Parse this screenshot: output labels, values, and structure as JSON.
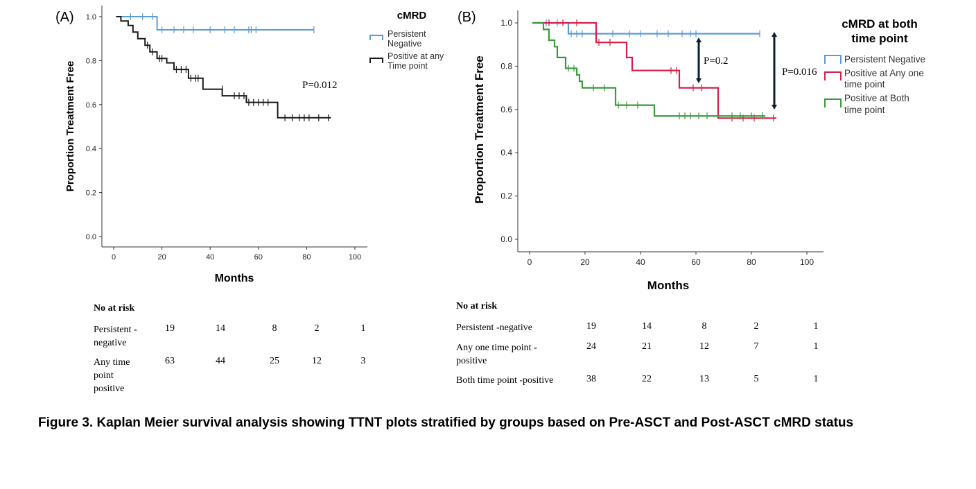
{
  "chart_data": [
    {
      "panel_label": "(A)",
      "type": "line",
      "step": true,
      "ylabel": "Proportion Treatment Free",
      "xlabel": "Months",
      "xlim": [
        0,
        100
      ],
      "ylim": [
        0,
        1
      ],
      "x_ticks": [
        "0",
        "20",
        "40",
        "60",
        "80",
        "100"
      ],
      "y_ticks": [
        "0.0",
        "0.2",
        "0.4",
        "0.6",
        "0.8",
        "1.0"
      ],
      "legend_title": "cMRD",
      "legend": [
        "Persistent Negative",
        "Positive at any Time point"
      ],
      "annotation": "P=0.012",
      "series": [
        {
          "name": "Persistent Negative",
          "color": "#5b9bd5",
          "points": [
            [
              1,
              1.0
            ],
            [
              18,
              1.0
            ],
            [
              18,
              0.94
            ],
            [
              83,
              0.94
            ]
          ],
          "censored": [
            [
              7,
              1.0
            ],
            [
              12,
              1.0
            ],
            [
              16,
              1.0
            ],
            [
              20,
              0.94
            ],
            [
              25,
              0.94
            ],
            [
              29,
              0.94
            ],
            [
              33,
              0.94
            ],
            [
              40,
              0.94
            ],
            [
              46,
              0.94
            ],
            [
              50,
              0.94
            ],
            [
              56,
              0.94
            ],
            [
              57,
              0.94
            ],
            [
              59,
              0.94
            ],
            [
              83,
              0.94
            ]
          ]
        },
        {
          "name": "Positive at any Time point",
          "color": "#1a1a1a",
          "points": [
            [
              1,
              1.0
            ],
            [
              3,
              1.0
            ],
            [
              3,
              0.98
            ],
            [
              6,
              0.98
            ],
            [
              6,
              0.96
            ],
            [
              8,
              0.96
            ],
            [
              8,
              0.93
            ],
            [
              10,
              0.93
            ],
            [
              10,
              0.9
            ],
            [
              13,
              0.9
            ],
            [
              13,
              0.87
            ],
            [
              15,
              0.87
            ],
            [
              15,
              0.84
            ],
            [
              18,
              0.84
            ],
            [
              18,
              0.81
            ],
            [
              22,
              0.81
            ],
            [
              22,
              0.79
            ],
            [
              25,
              0.79
            ],
            [
              25,
              0.76
            ],
            [
              31,
              0.76
            ],
            [
              31,
              0.72
            ],
            [
              37,
              0.72
            ],
            [
              37,
              0.67
            ],
            [
              45,
              0.67
            ],
            [
              45,
              0.64
            ],
            [
              55,
              0.64
            ],
            [
              55,
              0.61
            ],
            [
              68,
              0.61
            ],
            [
              68,
              0.54
            ],
            [
              90,
              0.54
            ]
          ],
          "censored": [
            [
              14,
              0.87
            ],
            [
              16,
              0.84
            ],
            [
              19,
              0.81
            ],
            [
              20,
              0.81
            ],
            [
              26,
              0.76
            ],
            [
              28,
              0.76
            ],
            [
              30,
              0.76
            ],
            [
              32,
              0.72
            ],
            [
              34,
              0.72
            ],
            [
              35,
              0.72
            ],
            [
              45,
              0.67
            ],
            [
              50,
              0.64
            ],
            [
              52,
              0.64
            ],
            [
              54,
              0.64
            ],
            [
              56,
              0.61
            ],
            [
              58,
              0.61
            ],
            [
              60,
              0.61
            ],
            [
              62,
              0.61
            ],
            [
              64,
              0.61
            ],
            [
              71,
              0.54
            ],
            [
              74,
              0.54
            ],
            [
              77,
              0.54
            ],
            [
              79,
              0.54
            ],
            [
              81,
              0.54
            ],
            [
              85,
              0.54
            ],
            [
              89,
              0.54
            ]
          ]
        }
      ]
    },
    {
      "panel_label": "(B)",
      "type": "line",
      "step": true,
      "ylabel": "Proportion Treatment Free",
      "xlabel": "Months",
      "xlim": [
        0,
        100
      ],
      "ylim": [
        0,
        1
      ],
      "x_ticks": [
        "0",
        "20",
        "40",
        "60",
        "80",
        "100"
      ],
      "y_ticks": [
        "0.0",
        "0.2",
        "0.4",
        "0.6",
        "0.8",
        "1.0"
      ],
      "legend_title": "cMRD at both time point",
      "legend": [
        "Persistent Negative",
        "Positive at Any one time point",
        "Positive at Both time point"
      ],
      "annotations": [
        "P=0.2",
        "P=0.016"
      ],
      "series": [
        {
          "name": "Persistent Negative",
          "color": "#5b9bd5",
          "points": [
            [
              1,
              1.0
            ],
            [
              14,
              1.0
            ],
            [
              14,
              0.95
            ],
            [
              83,
              0.95
            ]
          ],
          "censored": [
            [
              6,
              1.0
            ],
            [
              10,
              1.0
            ],
            [
              15,
              0.95
            ],
            [
              17,
              0.95
            ],
            [
              19,
              0.95
            ],
            [
              24,
              0.95
            ],
            [
              30,
              0.95
            ],
            [
              36,
              0.95
            ],
            [
              40,
              0.95
            ],
            [
              46,
              0.95
            ],
            [
              50,
              0.95
            ],
            [
              55,
              0.95
            ],
            [
              58,
              0.95
            ],
            [
              60,
              0.95
            ],
            [
              83,
              0.95
            ]
          ]
        },
        {
          "name": "Positive at Any one time point",
          "color": "#d6204a",
          "points": [
            [
              1,
              1.0
            ],
            [
              24,
              1.0
            ],
            [
              24,
              0.91
            ],
            [
              35,
              0.91
            ],
            [
              35,
              0.84
            ],
            [
              37,
              0.84
            ],
            [
              37,
              0.78
            ],
            [
              54,
              0.78
            ],
            [
              54,
              0.7
            ],
            [
              68,
              0.7
            ],
            [
              68,
              0.56
            ],
            [
              89,
              0.56
            ]
          ],
          "censored": [
            [
              7,
              1.0
            ],
            [
              12,
              1.0
            ],
            [
              17,
              1.0
            ],
            [
              25,
              0.91
            ],
            [
              29,
              0.91
            ],
            [
              51,
              0.78
            ],
            [
              53,
              0.78
            ],
            [
              59,
              0.7
            ],
            [
              62,
              0.7
            ],
            [
              73,
              0.56
            ],
            [
              77,
              0.56
            ],
            [
              81,
              0.56
            ],
            [
              88,
              0.56
            ]
          ]
        },
        {
          "name": "Positive at Both time point",
          "color": "#3a9a3a",
          "points": [
            [
              1,
              1.0
            ],
            [
              5,
              1.0
            ],
            [
              5,
              0.97
            ],
            [
              7,
              0.97
            ],
            [
              7,
              0.92
            ],
            [
              9,
              0.92
            ],
            [
              9,
              0.89
            ],
            [
              10,
              0.89
            ],
            [
              10,
              0.84
            ],
            [
              13,
              0.84
            ],
            [
              13,
              0.79
            ],
            [
              17,
              0.79
            ],
            [
              17,
              0.76
            ],
            [
              18,
              0.76
            ],
            [
              18,
              0.73
            ],
            [
              19,
              0.73
            ],
            [
              19,
              0.7
            ],
            [
              31,
              0.7
            ],
            [
              31,
              0.62
            ],
            [
              45,
              0.62
            ],
            [
              45,
              0.57
            ],
            [
              85,
              0.57
            ]
          ],
          "censored": [
            [
              14,
              0.79
            ],
            [
              16,
              0.79
            ],
            [
              23,
              0.7
            ],
            [
              27,
              0.7
            ],
            [
              32,
              0.62
            ],
            [
              35,
              0.62
            ],
            [
              39,
              0.62
            ],
            [
              54,
              0.57
            ],
            [
              56,
              0.57
            ],
            [
              58,
              0.57
            ],
            [
              61,
              0.57
            ],
            [
              64,
              0.57
            ],
            [
              73,
              0.57
            ],
            [
              76,
              0.57
            ],
            [
              80,
              0.57
            ],
            [
              84,
              0.57
            ]
          ]
        }
      ]
    }
  ],
  "risk_table_a": {
    "title": "No at risk",
    "rows": [
      {
        "label": "Persistent - negative",
        "values": [
          "19",
          "14",
          "8",
          "2",
          "1"
        ]
      },
      {
        "label": "Any time point positive",
        "values": [
          "63",
          "44",
          "25",
          "12",
          "3"
        ]
      }
    ]
  },
  "risk_table_b": {
    "title": "No at risk",
    "rows": [
      {
        "label": "Persistent -negative",
        "values": [
          "19",
          "14",
          "8",
          "2",
          "1"
        ]
      },
      {
        "label": "Any one time point - positive",
        "values": [
          "24",
          "21",
          "12",
          "7",
          "1"
        ]
      },
      {
        "label": "Both time point -positive",
        "values": [
          "38",
          "22",
          "13",
          "5",
          "1"
        ]
      }
    ]
  },
  "caption": "Figure 3.  Kaplan Meier survival analysis showing TTNT plots stratified by groups based on Pre-ASCT and Post-ASCT cMRD status"
}
